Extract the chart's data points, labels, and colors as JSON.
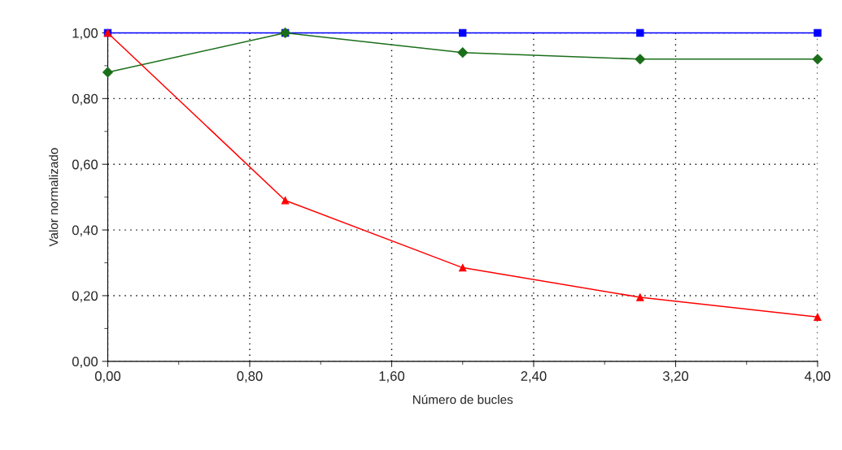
{
  "chart_data": {
    "type": "line",
    "xlabel": "Número de bucles",
    "ylabel": "Valor normalizado",
    "x": [
      0,
      1,
      2,
      3,
      4
    ],
    "series": [
      {
        "color": "#0000ff",
        "marker": "square",
        "values": [
          1.0,
          1.0,
          1.0,
          1.0,
          1.0
        ]
      },
      {
        "color": "#1a6e1a",
        "marker": "diamond",
        "values": [
          0.88,
          1.0,
          0.94,
          0.92,
          0.92
        ]
      },
      {
        "color": "#ff0000",
        "marker": "triangle",
        "values": [
          1.0,
          0.49,
          0.285,
          0.195,
          0.135
        ]
      }
    ],
    "xlim": [
      0,
      4
    ],
    "ylim": [
      0,
      1
    ],
    "xticks": [
      {
        "value": 0,
        "label": "0,00"
      },
      {
        "value": 0.8,
        "label": "0,80"
      },
      {
        "value": 1.6,
        "label": "1,60"
      },
      {
        "value": 2.4,
        "label": "2,40"
      },
      {
        "value": 3.2,
        "label": "3,20"
      },
      {
        "value": 4,
        "label": "4,00"
      }
    ],
    "yticks": [
      {
        "value": 0,
        "label": "0,00"
      },
      {
        "value": 0.2,
        "label": "0,20"
      },
      {
        "value": 0.4,
        "label": "0,40"
      },
      {
        "value": 0.6,
        "label": "0,60"
      },
      {
        "value": 0.8,
        "label": "0,80"
      },
      {
        "value": 1,
        "label": "1,00"
      }
    ],
    "grid": true,
    "line_style": "solid"
  }
}
